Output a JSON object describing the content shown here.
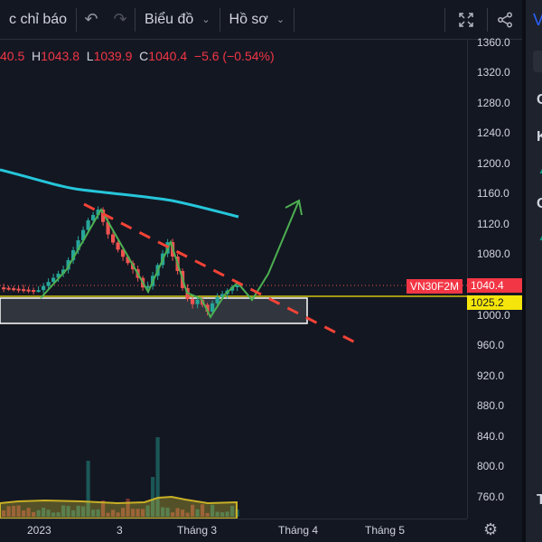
{
  "toolbar": {
    "indicators_label": "c chỉ báo",
    "undo_icon": "undo-icon",
    "redo_icon": "redo-icon",
    "chart_type_label": "Biểu đồ",
    "profile_label": "Hồ sơ",
    "fullscreen_icon": "fullscreen-icon",
    "share_icon": "share-icon"
  },
  "legend": {
    "open_value": "40.5",
    "high_label": "H",
    "high_value": "1043.8",
    "low_label": "L",
    "low_value": "1039.9",
    "close_label": "C",
    "close_value": "1040.4",
    "change": "−5.6 (−0.54%)"
  },
  "price_axis": {
    "ticks": [
      "1360.0",
      "1320.0",
      "1280.0",
      "1240.0",
      "1200.0",
      "1160.0",
      "1120.0",
      "1080.0",
      "1000.0",
      "960.0",
      "920.0",
      "880.0",
      "840.0",
      "800.0",
      "760.0"
    ],
    "symbol_badge": "VN30F2M",
    "last_price": "1040.4",
    "level_price": "1025.2"
  },
  "time_axis": {
    "ticks": [
      "2023",
      "3",
      "Tháng 3",
      "Tháng 4",
      "Tháng 5"
    ]
  },
  "side_panel": {
    "title": "V",
    "h1": "C",
    "h2": "K",
    "h3": "G",
    "h4": "T"
  },
  "colors": {
    "background": "#131722",
    "up": "#26a69a",
    "down": "#ef5350",
    "moving_average": "#26c6da",
    "pattern_line": "#4caf50",
    "trend_line": "#f44336",
    "support": "#f5e50a"
  },
  "chart_data": {
    "type": "candlestick",
    "symbol": "VN30F2M",
    "ylim": [
      740,
      1370
    ],
    "x": [
      "2023",
      "3",
      "Tháng 3",
      "Tháng 4",
      "Tháng 5"
    ],
    "last_price": 1040.4,
    "support_level": 1025.2,
    "support_zone": [
      990,
      1022
    ],
    "annotations": [
      "rising wedge pattern",
      "descending trend line",
      "projected breakout arrow"
    ]
  }
}
